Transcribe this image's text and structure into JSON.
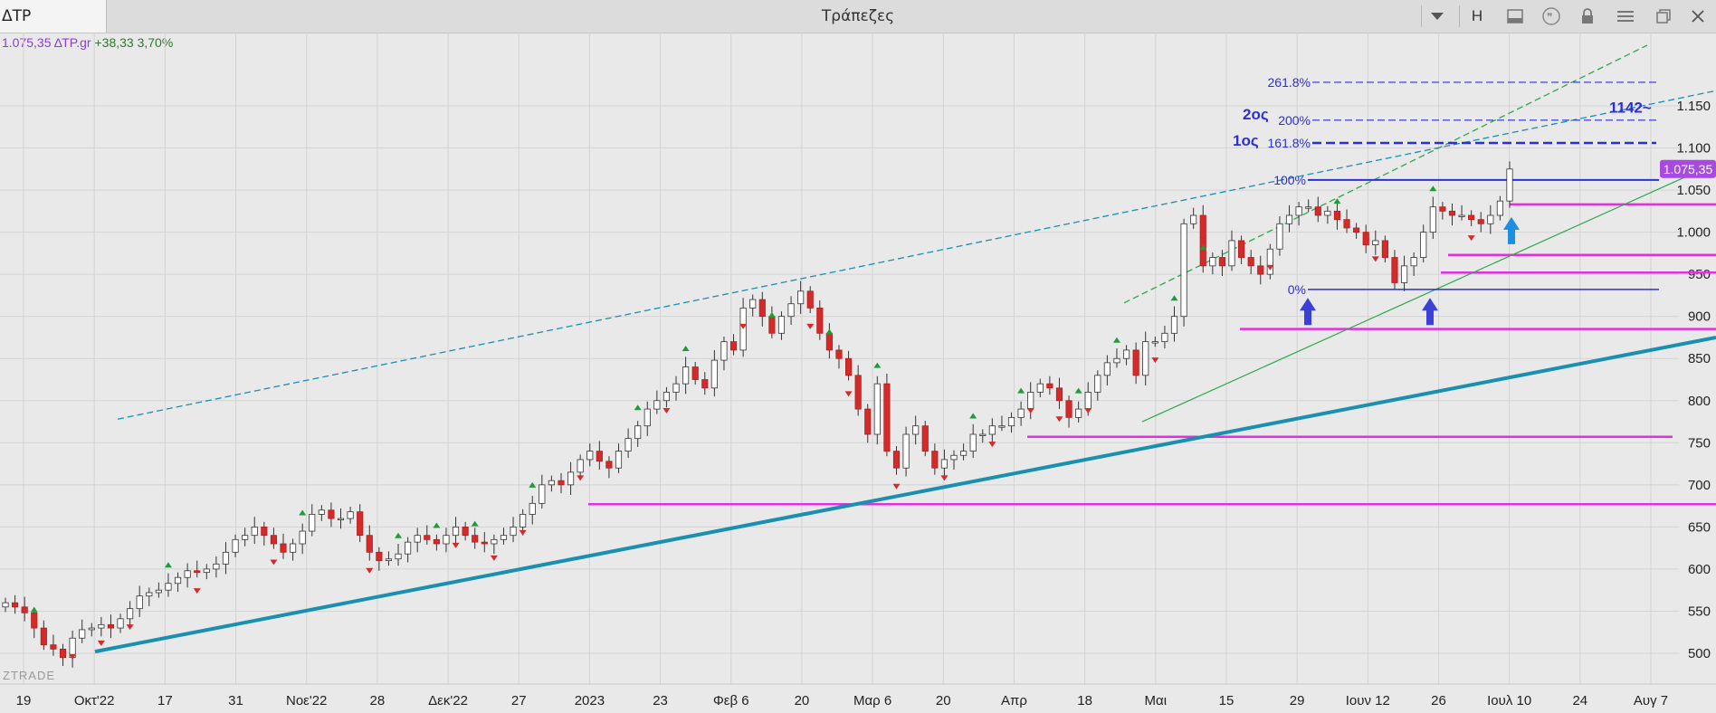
{
  "window": {
    "symbol_tab": "ΔΤΡ",
    "title": "Τράπεζες",
    "toolbar": {
      "dropdown_icon": "chevron-down-icon",
      "h_label": "H",
      "icons": [
        "layout-icon",
        "quote-icon",
        "lock-icon",
        "menu-icon",
        "restore-icon",
        "close-icon"
      ]
    }
  },
  "ticker": {
    "price_symbol": "1.075,35 ΔΤΡ.gr",
    "change": "+38,33 3,70%"
  },
  "colors": {
    "up_candle": "#ffffff",
    "down_candle": "#d42a2a",
    "magenta": "#e030e0",
    "trend_main": "#1a8fb0",
    "fib_blue": "#2e2ed8",
    "green": "#2ea84a",
    "price_tag": "#a64ae0"
  },
  "chart_data": {
    "type": "candlestick",
    "ylim": [
      470,
      1230
    ],
    "y_ticks": [
      {
        "v": 1150,
        "label": "1.150"
      },
      {
        "v": 1100,
        "label": "1.100"
      },
      {
        "v": 1050,
        "label": "1.050"
      },
      {
        "v": 1000,
        "label": "1.000"
      },
      {
        "v": 950,
        "label": "950"
      },
      {
        "v": 900,
        "label": "900"
      },
      {
        "v": 850,
        "label": "850"
      },
      {
        "v": 800,
        "label": "800"
      },
      {
        "v": 750,
        "label": "750"
      },
      {
        "v": 700,
        "label": "700"
      },
      {
        "v": 650,
        "label": "650"
      },
      {
        "v": 600,
        "label": "600"
      },
      {
        "v": 550,
        "label": "550"
      },
      {
        "v": 500,
        "label": "500"
      }
    ],
    "x_labels": [
      "19",
      "Οκτ'22",
      "17",
      "31",
      "Νοε'22",
      "28",
      "Δεκ'22",
      "27",
      "2023",
      "23",
      "Φεβ 6",
      "20",
      "Μαρ 6",
      "20",
      "Απρ",
      "18",
      "Μαι",
      "15",
      "29",
      "Ιουν 12",
      "26",
      "Ιουλ 10",
      "24",
      "Αυγ 7"
    ],
    "last_price_label": "1.075,35",
    "closes": [
      560,
      555,
      548,
      530,
      510,
      505,
      495,
      518,
      528,
      530,
      534,
      530,
      541,
      553,
      568,
      572,
      575,
      583,
      590,
      598,
      596,
      600,
      606,
      620,
      635,
      640,
      650,
      640,
      630,
      620,
      630,
      645,
      665,
      670,
      660,
      660,
      668,
      640,
      620,
      610,
      612,
      618,
      632,
      640,
      635,
      630,
      640,
      650,
      640,
      632,
      630,
      635,
      640,
      650,
      665,
      678,
      700,
      705,
      700,
      715,
      730,
      740,
      728,
      720,
      740,
      755,
      770,
      790,
      800,
      810,
      820,
      840,
      825,
      815,
      848,
      870,
      860,
      910,
      920,
      900,
      880,
      900,
      915,
      930,
      910,
      880,
      860,
      850,
      830,
      790,
      760,
      820,
      740,
      720,
      760,
      770,
      740,
      720,
      730,
      735,
      740,
      760,
      760,
      770,
      770,
      780,
      790,
      810,
      820,
      815,
      800,
      780,
      790,
      810,
      830,
      845,
      850,
      860,
      830,
      870,
      870,
      880,
      900,
      1010,
      1020,
      960,
      970,
      960,
      990,
      970,
      960,
      950,
      980,
      1010,
      1020,
      1030,
      1030,
      1020,
      1025,
      1015,
      1005,
      1000,
      985,
      990,
      970,
      940,
      960,
      970,
      1000,
      1030,
      1025,
      1020,
      1020,
      1015,
      1010,
      1020,
      1037,
      1075
    ],
    "fib_levels": [
      {
        "label": "261.8%",
        "v": 1178
      },
      {
        "label": "200%",
        "v": 1133
      },
      {
        "label": "161.8%",
        "v": 1106
      },
      {
        "label": "100%",
        "v": 1062
      },
      {
        "label": "0%",
        "v": 932
      }
    ],
    "annotations": {
      "first_target": "1ος",
      "second_target": "2ος",
      "target_value": "1142~"
    },
    "horizontal_levels": [
      1033,
      973,
      952,
      885,
      757,
      677
    ]
  },
  "watermark": "ZTRADE"
}
